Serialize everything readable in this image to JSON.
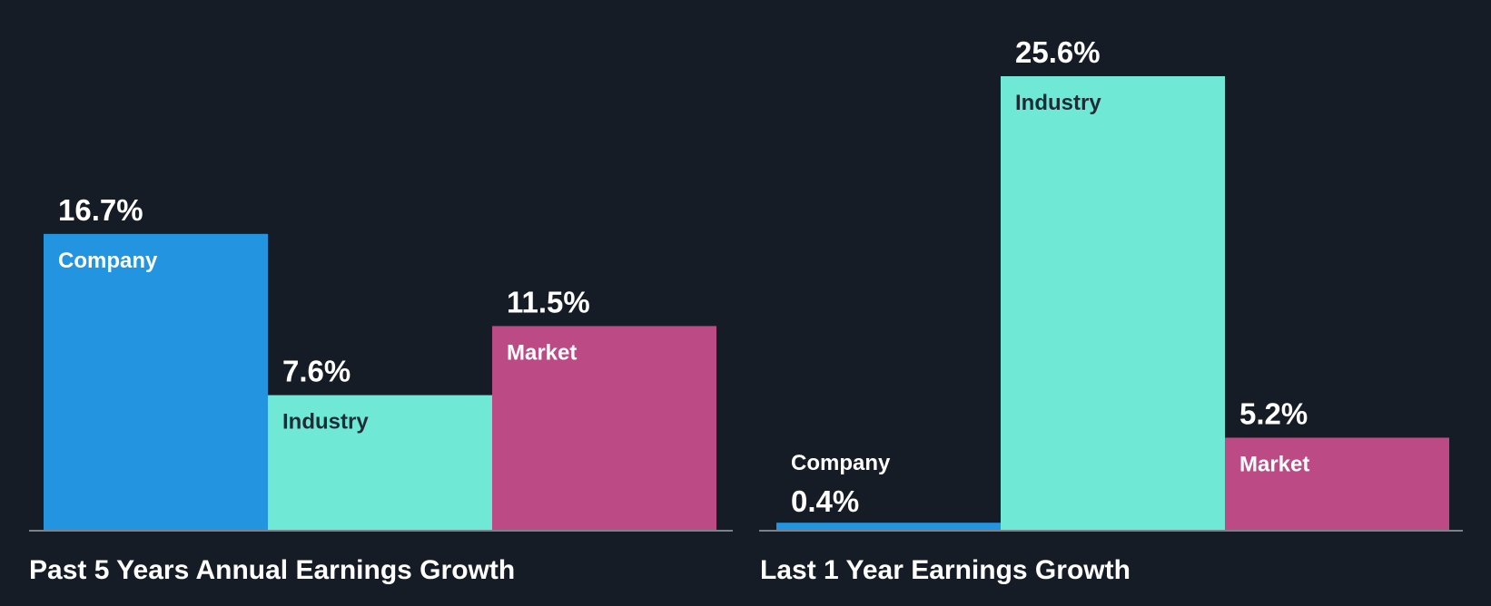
{
  "colors": {
    "background": "#161c25",
    "Company": "#2394df",
    "Industry": "#6fe8d6",
    "Market": "#bb4a85",
    "axis": "#7b818a",
    "label_on_dark": "#ffffff",
    "label_on_light": "#1f2c36"
  },
  "chart_data": [
    {
      "type": "bar",
      "title": "Past 5 Years Annual Earnings Growth",
      "categories": [
        "Company",
        "Industry",
        "Market"
      ],
      "values": [
        16.7,
        7.6,
        11.5
      ],
      "value_labels": [
        "16.7%",
        "7.6%",
        "11.5%"
      ],
      "ylim": [
        0,
        25.6
      ],
      "grid": false,
      "legend": "none"
    },
    {
      "type": "bar",
      "title": "Last 1 Year Earnings Growth",
      "categories": [
        "Company",
        "Industry",
        "Market"
      ],
      "values": [
        0.4,
        25.6,
        5.2
      ],
      "value_labels": [
        "0.4%",
        "25.6%",
        "5.2%"
      ],
      "ylim": [
        0,
        25.6
      ],
      "grid": false,
      "legend": "none"
    }
  ]
}
